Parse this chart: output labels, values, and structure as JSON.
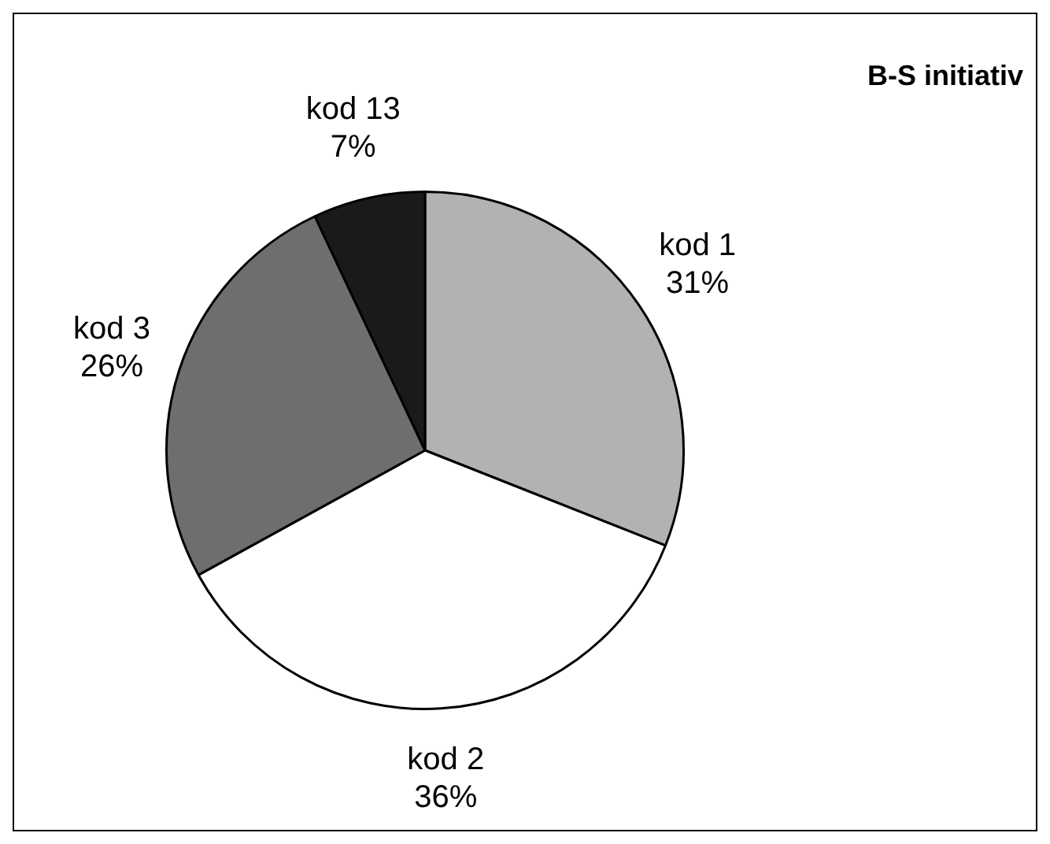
{
  "chart_data": {
    "type": "pie",
    "title": "B-S initiativ",
    "categories": [
      "kod 1",
      "kod 2",
      "kod 3",
      "kod 13"
    ],
    "values": [
      31,
      36,
      26,
      7
    ],
    "value_labels": [
      "31%",
      "36%",
      "26%",
      "7%"
    ],
    "colors": [
      "#b2b2b2",
      "#ffffff",
      "#6e6e6e",
      "#1a1a1a"
    ],
    "legend": false
  }
}
